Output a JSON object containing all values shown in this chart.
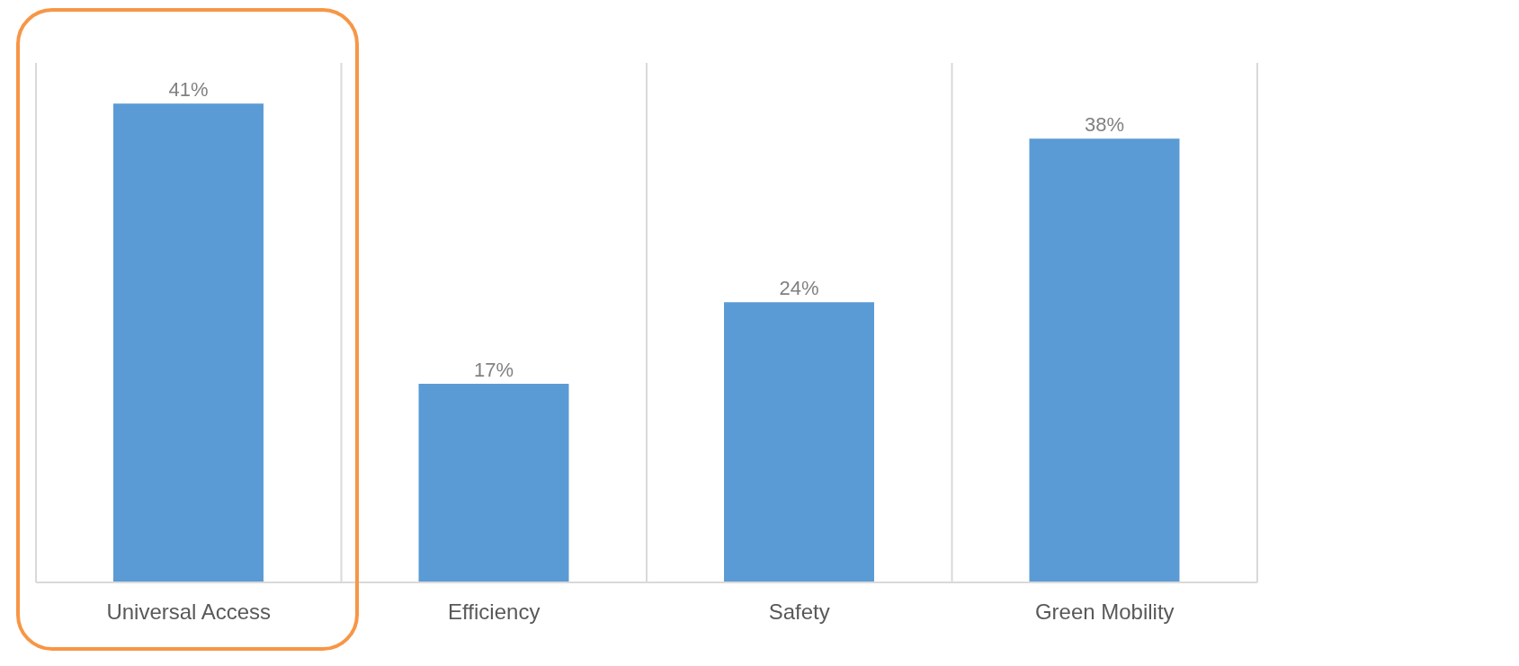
{
  "chart_data": {
    "type": "bar",
    "categories": [
      "Universal Access",
      "Efficiency",
      "Safety",
      "Green Mobility"
    ],
    "values": [
      41,
      17,
      24,
      38
    ],
    "value_labels": [
      "41%",
      "17%",
      "24%",
      "38%"
    ],
    "color": "#5b9bd5",
    "grid": "x"
  }
}
